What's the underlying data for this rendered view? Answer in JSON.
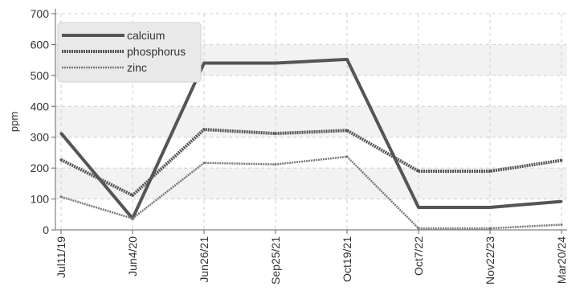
{
  "chart_data": {
    "type": "line",
    "ylabel": "ppm",
    "xlabel": "",
    "ylim": [
      0,
      700
    ],
    "yticks": [
      0,
      100,
      200,
      300,
      400,
      500,
      600,
      700
    ],
    "categories": [
      "Jul11/19",
      "Jun4/20",
      "Jun26/21",
      "Sep25/21",
      "Oct19/21",
      "Oct7/22",
      "Nov22/23",
      "Mar20/24"
    ],
    "grid": true,
    "legend_position": "top-left",
    "series": [
      {
        "name": "calcium",
        "values": [
          313,
          37,
          540,
          540,
          552,
          73,
          73,
          92
        ],
        "color": "#555555",
        "style": "solid"
      },
      {
        "name": "phosphorus",
        "values": [
          227,
          112,
          325,
          312,
          322,
          190,
          190,
          225
        ],
        "color": "#555555",
        "style": "dotted"
      },
      {
        "name": "zinc",
        "values": [
          107,
          37,
          217,
          212,
          237,
          5,
          5,
          17
        ],
        "color": "#7a7a7a",
        "style": "dotted-thin"
      }
    ]
  }
}
